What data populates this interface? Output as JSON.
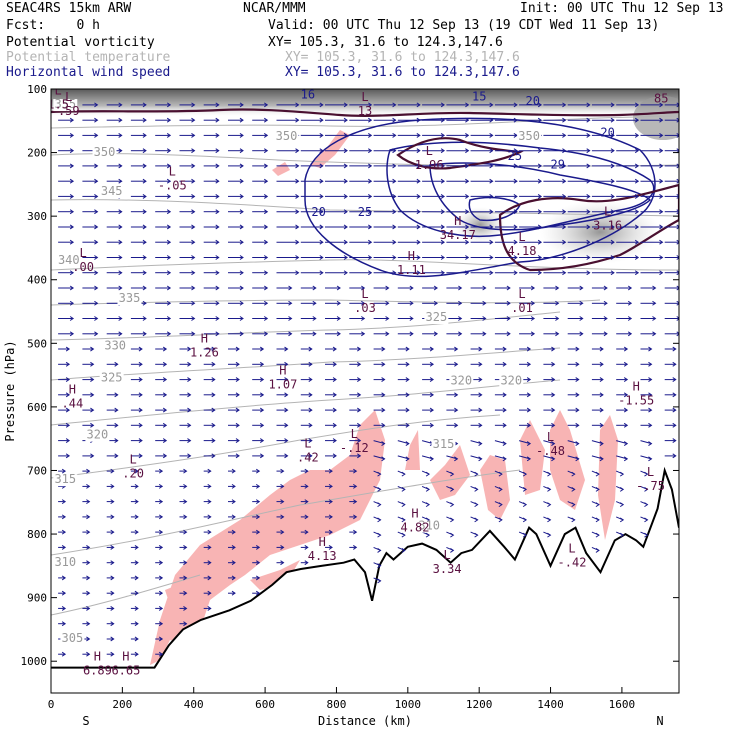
{
  "header": {
    "model": "SEAC4RS 15km ARW",
    "org": "NCAR/MMM",
    "init": "Init: 00 UTC Thu 12 Sep 13",
    "fcst": "Fcst:    0 h",
    "valid": "Valid: 00 UTC Thu 12 Sep 13 (19 CDT Wed 11 Sep 13)",
    "fields": [
      {
        "name": "Potential vorticity",
        "xy": "XY= 105.3, 31.6 to 124.3,147.6",
        "color": "#000000"
      },
      {
        "name": "Potential temperature",
        "xy": "XY= 105.3, 31.6 to 124.3,147.6",
        "color": "#b4b4b4"
      },
      {
        "name": "Horizontal wind speed",
        "xy": "XY= 105.3, 31.6 to 124.3,147.6",
        "color": "#1a1a8c"
      }
    ]
  },
  "chart_data": {
    "type": "cross-section",
    "xlabel": "Distance (km)",
    "ylabel": "Pressure (hPa)",
    "xlim": [
      0,
      1760
    ],
    "ylim": [
      1050,
      100
    ],
    "x_ticks": [
      "0",
      "200",
      "400",
      "600",
      "800",
      "1000",
      "1200",
      "1400",
      "1600"
    ],
    "y_ticks": [
      "100",
      "200",
      "300",
      "400",
      "500",
      "600",
      "700",
      "800",
      "900",
      "1000"
    ],
    "endpoint_labels": {
      "left": "S",
      "right": "N"
    },
    "terrain": [
      [
        0,
        1010
      ],
      [
        290,
        1010
      ],
      [
        330,
        975
      ],
      [
        370,
        950
      ],
      [
        420,
        935
      ],
      [
        500,
        920
      ],
      [
        560,
        905
      ],
      [
        620,
        880
      ],
      [
        660,
        860
      ],
      [
        700,
        855
      ],
      [
        760,
        850
      ],
      [
        820,
        845
      ],
      [
        850,
        840
      ],
      [
        880,
        860
      ],
      [
        900,
        905
      ],
      [
        920,
        850
      ],
      [
        940,
        830
      ],
      [
        960,
        840
      ],
      [
        1000,
        820
      ],
      [
        1040,
        815
      ],
      [
        1080,
        825
      ],
      [
        1120,
        845
      ],
      [
        1150,
        830
      ],
      [
        1180,
        825
      ],
      [
        1230,
        795
      ],
      [
        1270,
        820
      ],
      [
        1300,
        840
      ],
      [
        1340,
        790
      ],
      [
        1360,
        800
      ],
      [
        1400,
        850
      ],
      [
        1440,
        800
      ],
      [
        1470,
        790
      ],
      [
        1500,
        830
      ],
      [
        1540,
        860
      ],
      [
        1580,
        810
      ],
      [
        1610,
        800
      ],
      [
        1640,
        810
      ],
      [
        1660,
        820
      ],
      [
        1700,
        760
      ],
      [
        1720,
        700
      ],
      [
        1740,
        730
      ],
      [
        1760,
        790
      ]
    ],
    "theta_labels": [
      {
        "x": 40,
        "p": 130,
        "text": "355"
      },
      {
        "x": 150,
        "p": 205,
        "text": "350"
      },
      {
        "x": 170,
        "p": 267,
        "text": "345"
      },
      {
        "x": 50,
        "p": 375,
        "text": "340"
      },
      {
        "x": 220,
        "p": 435,
        "text": "335"
      },
      {
        "x": 180,
        "p": 510,
        "text": "330"
      },
      {
        "x": 170,
        "p": 560,
        "text": "325"
      },
      {
        "x": 130,
        "p": 650,
        "text": "320"
      },
      {
        "x": 40,
        "p": 720,
        "text": "315"
      },
      {
        "x": 40,
        "p": 850,
        "text": "310"
      },
      {
        "x": 60,
        "p": 970,
        "text": "305"
      },
      {
        "x": 1080,
        "p": 465,
        "text": "325"
      },
      {
        "x": 1150,
        "p": 565,
        "text": "320"
      },
      {
        "x": 1290,
        "p": 565,
        "text": "320"
      },
      {
        "x": 1100,
        "p": 665,
        "text": "315"
      },
      {
        "x": 1060,
        "p": 793,
        "text": "310"
      },
      {
        "x": 660,
        "p": 180,
        "text": "350"
      },
      {
        "x": 1340,
        "p": 180,
        "text": "350"
      }
    ],
    "wind_labels": [
      {
        "x": 750,
        "p": 300,
        "text": "20"
      },
      {
        "x": 880,
        "p": 300,
        "text": "25"
      },
      {
        "x": 1300,
        "p": 212,
        "text": "25"
      },
      {
        "x": 1420,
        "p": 225,
        "text": "29"
      },
      {
        "x": 1560,
        "p": 175,
        "text": "20"
      },
      {
        "x": 1350,
        "p": 125,
        "text": "20"
      },
      {
        "x": 1200,
        "p": 118,
        "text": "15"
      },
      {
        "x": 720,
        "p": 115,
        "text": "16"
      }
    ],
    "extrema": [
      {
        "x": 50,
        "p": 130,
        "kind": "L",
        "value": ".59"
      },
      {
        "x": 340,
        "p": 247,
        "kind": "L",
        "value": "-.05"
      },
      {
        "x": 90,
        "p": 375,
        "kind": "L",
        "value": ".00"
      },
      {
        "x": 880,
        "p": 440,
        "kind": "L",
        "value": ".03"
      },
      {
        "x": 1320,
        "p": 440,
        "kind": "L",
        "value": ".01"
      },
      {
        "x": 430,
        "p": 510,
        "kind": "H",
        "value": "1.26"
      },
      {
        "x": 650,
        "p": 560,
        "kind": "H",
        "value": "1.07"
      },
      {
        "x": 60,
        "p": 590,
        "kind": "H",
        "value": ".44"
      },
      {
        "x": 1640,
        "p": 585,
        "kind": "H",
        "value": "-1.55"
      },
      {
        "x": 720,
        "p": 675,
        "kind": "L",
        "value": ".42"
      },
      {
        "x": 850,
        "p": 660,
        "kind": "L",
        "value": "-.12"
      },
      {
        "x": 1400,
        "p": 665,
        "kind": "L",
        "value": "-.48"
      },
      {
        "x": 230,
        "p": 700,
        "kind": "L",
        "value": ".20"
      },
      {
        "x": 1680,
        "p": 720,
        "kind": "L",
        "value": "-.75"
      },
      {
        "x": 1020,
        "p": 785,
        "kind": "H",
        "value": "4.82"
      },
      {
        "x": 760,
        "p": 830,
        "kind": "H",
        "value": "4.13"
      },
      {
        "x": 1110,
        "p": 850,
        "kind": "L",
        "value": "3.34"
      },
      {
        "x": 1460,
        "p": 840,
        "kind": "L",
        "value": "-.42"
      },
      {
        "x": 130,
        "p": 1010,
        "kind": "H",
        "value": "6.89"
      },
      {
        "x": 210,
        "p": 1010,
        "kind": "H",
        "value": "6.65"
      },
      {
        "x": 1060,
        "p": 215,
        "kind": "L",
        "value": "1.96"
      },
      {
        "x": 1140,
        "p": 325,
        "kind": "H",
        "value": "34.17"
      },
      {
        "x": 1320,
        "p": 350,
        "kind": "L",
        "value": "4.18"
      },
      {
        "x": 1560,
        "p": 310,
        "kind": "L",
        "value": "3.16"
      },
      {
        "x": 1010,
        "p": 380,
        "kind": "H",
        "value": "1.11"
      },
      {
        "x": 880,
        "p": 130,
        "kind": "L",
        "value": "13"
      },
      {
        "x": 20,
        "p": 120,
        "kind": "L",
        "value": "1.5"
      },
      {
        "x": 1710,
        "p": 110,
        "kind": "L",
        "value": "85"
      }
    ]
  }
}
